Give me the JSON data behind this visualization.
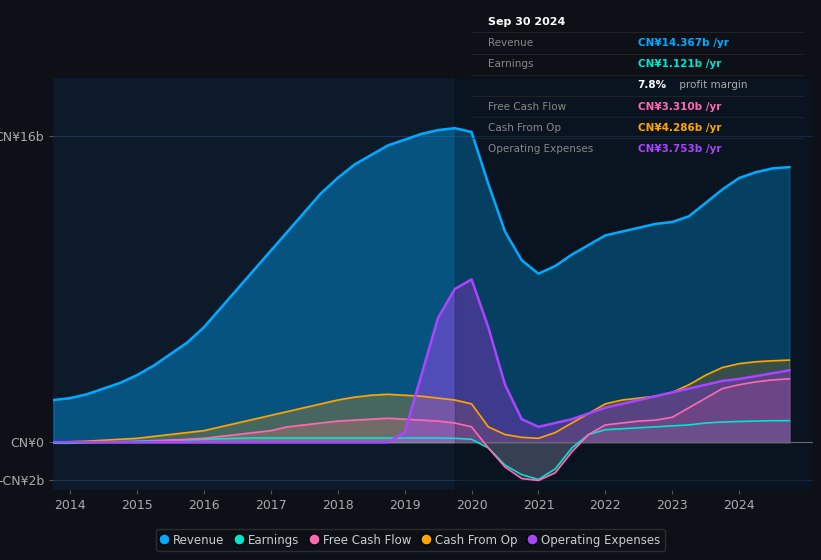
{
  "bg_color": "#0d1117",
  "plot_bg_color": "#0d1a2a",
  "grid_color": "#1e3a5f",
  "ylim": [
    -2500000000.0,
    19000000000.0
  ],
  "ytick_positions": [
    -2000000000.0,
    0,
    16000000000.0
  ],
  "ytick_labels": [
    "-CN¥2b",
    "CN¥0",
    "CN¥16b"
  ],
  "years": [
    2013.75,
    2014.0,
    2014.25,
    2014.5,
    2014.75,
    2015.0,
    2015.25,
    2015.5,
    2015.75,
    2016.0,
    2016.25,
    2016.5,
    2016.75,
    2017.0,
    2017.25,
    2017.5,
    2017.75,
    2018.0,
    2018.25,
    2018.5,
    2018.75,
    2019.0,
    2019.25,
    2019.5,
    2019.75,
    2020.0,
    2020.25,
    2020.5,
    2020.75,
    2021.0,
    2021.25,
    2021.5,
    2021.75,
    2022.0,
    2022.25,
    2022.5,
    2022.75,
    2023.0,
    2023.25,
    2023.5,
    2023.75,
    2024.0,
    2024.25,
    2024.5,
    2024.75
  ],
  "revenue": [
    2200000000.0,
    2300000000.0,
    2500000000.0,
    2800000000.0,
    3100000000.0,
    3500000000.0,
    4000000000.0,
    4600000000.0,
    5200000000.0,
    6000000000.0,
    7000000000.0,
    8000000000.0,
    9000000000.0,
    10000000000.0,
    11000000000.0,
    12000000000.0,
    13000000000.0,
    13800000000.0,
    14500000000.0,
    15000000000.0,
    15500000000.0,
    15800000000.0,
    16100000000.0,
    16300000000.0,
    16400000000.0,
    16200000000.0,
    13500000000.0,
    11000000000.0,
    9500000000.0,
    8800000000.0,
    9200000000.0,
    9800000000.0,
    10300000000.0,
    10800000000.0,
    11000000000.0,
    11200000000.0,
    11400000000.0,
    11500000000.0,
    11800000000.0,
    12500000000.0,
    13200000000.0,
    13800000000.0,
    14100000000.0,
    14300000000.0,
    14367000000.0
  ],
  "earnings": [
    -50000000.0,
    -50000000.0,
    -20000000.0,
    0.0,
    20000000.0,
    50000000.0,
    80000000.0,
    100000000.0,
    120000000.0,
    150000000.0,
    180000000.0,
    200000000.0,
    220000000.0,
    220000000.0,
    220000000.0,
    220000000.0,
    220000000.0,
    220000000.0,
    220000000.0,
    220000000.0,
    220000000.0,
    220000000.0,
    220000000.0,
    220000000.0,
    200000000.0,
    150000000.0,
    -300000000.0,
    -1200000000.0,
    -1700000000.0,
    -1950000000.0,
    -1400000000.0,
    -300000000.0,
    400000000.0,
    650000000.0,
    700000000.0,
    750000000.0,
    800000000.0,
    850000000.0,
    900000000.0,
    1000000000.0,
    1050000000.0,
    1080000000.0,
    1100000000.0,
    1120000000.0,
    1121000000.0
  ],
  "free_cash_flow": [
    0.0,
    0.0,
    0.0,
    0.0,
    0.0,
    0.0,
    50000000.0,
    100000000.0,
    150000000.0,
    200000000.0,
    300000000.0,
    400000000.0,
    500000000.0,
    600000000.0,
    800000000.0,
    900000000.0,
    1000000000.0,
    1100000000.0,
    1150000000.0,
    1200000000.0,
    1250000000.0,
    1200000000.0,
    1150000000.0,
    1100000000.0,
    1000000000.0,
    800000000.0,
    -300000000.0,
    -1300000000.0,
    -1900000000.0,
    -2000000000.0,
    -1600000000.0,
    -500000000.0,
    400000000.0,
    900000000.0,
    1000000000.0,
    1100000000.0,
    1150000000.0,
    1300000000.0,
    1800000000.0,
    2300000000.0,
    2800000000.0,
    3000000000.0,
    3150000000.0,
    3250000000.0,
    3310000000.0
  ],
  "cash_from_op": [
    0.0,
    20000000.0,
    50000000.0,
    100000000.0,
    150000000.0,
    200000000.0,
    300000000.0,
    400000000.0,
    500000000.0,
    600000000.0,
    800000000.0,
    1000000000.0,
    1200000000.0,
    1400000000.0,
    1600000000.0,
    1800000000.0,
    2000000000.0,
    2200000000.0,
    2350000000.0,
    2450000000.0,
    2500000000.0,
    2450000000.0,
    2400000000.0,
    2300000000.0,
    2200000000.0,
    2000000000.0,
    800000000.0,
    400000000.0,
    250000000.0,
    200000000.0,
    500000000.0,
    1000000000.0,
    1500000000.0,
    2000000000.0,
    2200000000.0,
    2300000000.0,
    2400000000.0,
    2600000000.0,
    3000000000.0,
    3500000000.0,
    3900000000.0,
    4100000000.0,
    4200000000.0,
    4250000000.0,
    4286000000.0
  ],
  "op_expenses": [
    0.0,
    0.0,
    0.0,
    0.0,
    0.0,
    0.0,
    0.0,
    0.0,
    0.0,
    0.0,
    0.0,
    0.0,
    0.0,
    0.0,
    0.0,
    0.0,
    0.0,
    0.0,
    0.0,
    0.0,
    0.0,
    500000000.0,
    3500000000.0,
    6500000000.0,
    8000000000.0,
    8500000000.0,
    6000000000.0,
    3000000000.0,
    1200000000.0,
    800000000.0,
    1000000000.0,
    1200000000.0,
    1500000000.0,
    1800000000.0,
    2000000000.0,
    2200000000.0,
    2400000000.0,
    2600000000.0,
    2800000000.0,
    3000000000.0,
    3200000000.0,
    3300000000.0,
    3450000000.0,
    3600000000.0,
    3753000000.0
  ],
  "colors": {
    "revenue": "#00aaff",
    "earnings": "#00e5cc",
    "free_cash_flow": "#ff69b4",
    "cash_from_op": "#ffa500",
    "op_expenses": "#aa44ff"
  },
  "legend_labels": [
    "Revenue",
    "Earnings",
    "Free Cash Flow",
    "Cash From Op",
    "Operating Expenses"
  ],
  "xlim": [
    2013.75,
    2025.1
  ],
  "xticks": [
    2014,
    2015,
    2016,
    2017,
    2018,
    2019,
    2020,
    2021,
    2022,
    2023,
    2024
  ],
  "info_rows": [
    {
      "label": "Sep 30 2024",
      "value": "",
      "value_color": "#ffffff",
      "is_title": true
    },
    {
      "label": "Revenue",
      "value": "CN¥14.367b /yr",
      "value_color": "#00aaff",
      "is_title": false
    },
    {
      "label": "Earnings",
      "value": "CN¥1.121b /yr",
      "value_color": "#00e5cc",
      "is_title": false
    },
    {
      "label": "",
      "value": "7.8% profit margin",
      "value_color": "#ffffff",
      "is_title": false,
      "bold_prefix": "7.8%"
    },
    {
      "label": "Free Cash Flow",
      "value": "CN¥3.310b /yr",
      "value_color": "#ff69b4",
      "is_title": false
    },
    {
      "label": "Cash From Op",
      "value": "CN¥4.286b /yr",
      "value_color": "#ffa500",
      "is_title": false
    },
    {
      "label": "Operating Expenses",
      "value": "CN¥3.753b /yr",
      "value_color": "#aa44ff",
      "is_title": false
    }
  ]
}
